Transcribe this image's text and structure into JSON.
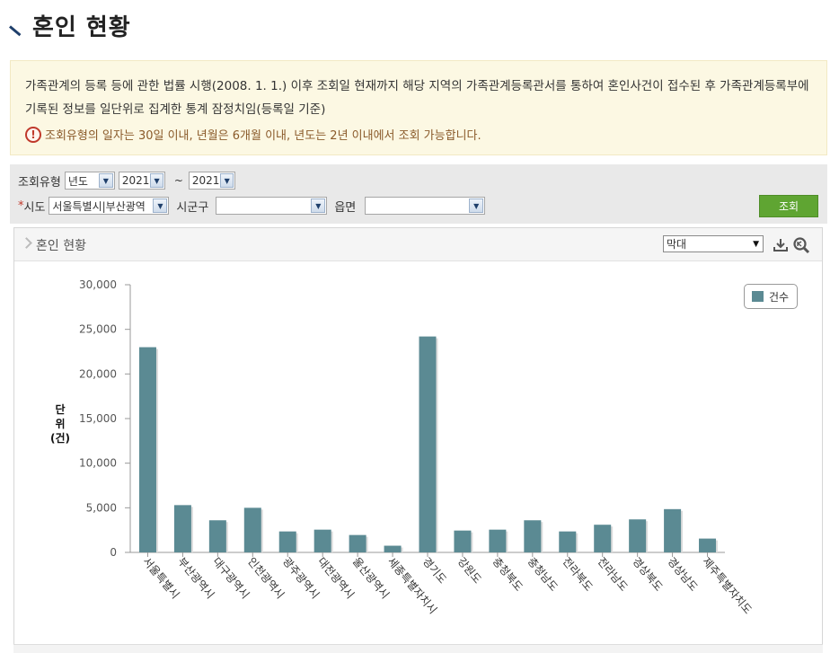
{
  "page": {
    "title": "혼인 현황"
  },
  "notice": {
    "line1": "가족관계의 등록 등에 관한 법률 시행(2008. 1. 1.) 이후 조회일 현재까지 해당 지역의 가족관계등록관서를 통하여 혼인사건이 접수된 후 가족관계등록부에 기록된 정보를 일단위로 집계한 통계 잠정치임(등록일 기준)",
    "warning": "조회유형의 일자는 30일 이내, 년월은 6개월 이내, 년도는 2년 이내에서 조회 가능합니다.",
    "warning_icon": "exclamation-circle-icon"
  },
  "search": {
    "type_label": "조회유형",
    "type_value": "년도",
    "year_from": "2021",
    "tilde": "~",
    "year_to": "2021",
    "sido_required": "*",
    "sido_label": "시도",
    "sido_value": "서울특별시|부산광역",
    "sigungu_label": "시군구",
    "sigungu_value": "",
    "eupmyeon_label": "읍면",
    "eupmyeon_value": "",
    "search_button": "조회",
    "search_button_color": "#5fa532"
  },
  "panel": {
    "title": "혼인 현황",
    "chart_type_value": "막대",
    "download_icon": "download-icon",
    "zoom_icon": "zoom-icon"
  },
  "chart_data": {
    "type": "bar",
    "categories": [
      "서울특별시",
      "부산광역시",
      "대구광역시",
      "인천광역시",
      "광주광역시",
      "대전광역시",
      "울산광역시",
      "세종특별자치시",
      "경기도",
      "강원도",
      "충청북도",
      "충청남도",
      "전라북도",
      "전라남도",
      "경상북도",
      "경상남도",
      "제주특별자치도"
    ],
    "series": [
      {
        "name": "건수",
        "values": [
          23000,
          5300,
          3600,
          5000,
          2350,
          2550,
          1950,
          750,
          24200,
          2450,
          2550,
          3600,
          2350,
          3100,
          3700,
          4850,
          1550
        ]
      }
    ],
    "ylabel": "단위(건)",
    "ylim": [
      0,
      30000
    ],
    "yticks": [
      "30,000",
      "25,000",
      "20,000",
      "15,000",
      "10,000",
      "5,000",
      "0"
    ],
    "ytick_values": [
      30000,
      25000,
      20000,
      15000,
      10000,
      5000,
      0
    ],
    "legend": "top-right",
    "bar_color": "#5b8a93",
    "ylabel_lines": [
      "단",
      "위",
      "(건)"
    ]
  }
}
